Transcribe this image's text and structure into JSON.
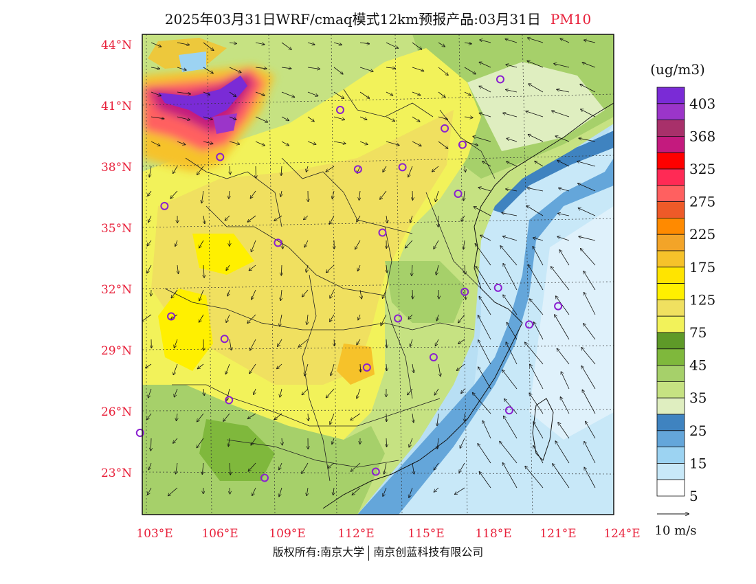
{
  "title": {
    "main": "2025年03月31日WRF/cmaq模式12km预报产品:03月31日",
    "pollutant": "PM10"
  },
  "footer": {
    "left": "版权所有:南京大学",
    "right": "南京创蓝科技有限公司"
  },
  "axes": {
    "lat_labels": [
      "44°N",
      "41°N",
      "38°N",
      "35°N",
      "32°N",
      "29°N",
      "26°N",
      "23°N"
    ],
    "lon_labels": [
      "103°E",
      "106°E",
      "109°E",
      "112°E",
      "115°E",
      "118°E",
      "121°E",
      "124°E"
    ],
    "lat_range": [
      21,
      44.5
    ],
    "lon_range": [
      102.8,
      124
    ]
  },
  "colorbar": {
    "unit": "(ug/m3)",
    "labels": [
      "403",
      "368",
      "325",
      "275",
      "225",
      "175",
      "125",
      "75",
      "45",
      "35",
      "25",
      "15",
      "5"
    ],
    "colors": [
      "#7a2bd6",
      "#9b35c9",
      "#a8306a",
      "#c41a7e",
      "#ff0000",
      "#ff2a55",
      "#ff6060",
      "#ee5a28",
      "#ff8a00",
      "#f3a428",
      "#f6c22a",
      "#ffe400",
      "#fff000",
      "#f0e060",
      "#f2f25a",
      "#5e9a28",
      "#7fb83c",
      "#a6d06a",
      "#c6e282",
      "#dfeec0",
      "#3f83c0",
      "#64a6da",
      "#9cd3f2",
      "#c8e8f8",
      "#ffffff"
    ]
  },
  "wind": {
    "scale_label": "10 m/s"
  },
  "cities": [
    {
      "lon": 118.9,
      "lat": 42.3
    },
    {
      "lon": 111.7,
      "lat": 40.8
    },
    {
      "lon": 116.4,
      "lat": 39.9
    },
    {
      "lon": 117.2,
      "lat": 39.1
    },
    {
      "lon": 106.3,
      "lat": 38.5
    },
    {
      "lon": 112.5,
      "lat": 37.9
    },
    {
      "lon": 114.5,
      "lat": 38.0
    },
    {
      "lon": 117.0,
      "lat": 36.7
    },
    {
      "lon": 103.8,
      "lat": 36.1
    },
    {
      "lon": 113.6,
      "lat": 34.8
    },
    {
      "lon": 108.9,
      "lat": 34.3
    },
    {
      "lon": 117.3,
      "lat": 31.9
    },
    {
      "lon": 118.8,
      "lat": 32.1
    },
    {
      "lon": 121.5,
      "lat": 31.2
    },
    {
      "lon": 120.2,
      "lat": 30.3
    },
    {
      "lon": 114.3,
      "lat": 30.6
    },
    {
      "lon": 104.1,
      "lat": 30.7
    },
    {
      "lon": 106.5,
      "lat": 29.6
    },
    {
      "lon": 115.9,
      "lat": 28.7
    },
    {
      "lon": 112.9,
      "lat": 28.2
    },
    {
      "lon": 106.7,
      "lat": 26.6
    },
    {
      "lon": 119.3,
      "lat": 26.1
    },
    {
      "lon": 113.3,
      "lat": 23.1
    },
    {
      "lon": 108.3,
      "lat": 22.8
    },
    {
      "lon": 102.7,
      "lat": 25.0
    }
  ]
}
